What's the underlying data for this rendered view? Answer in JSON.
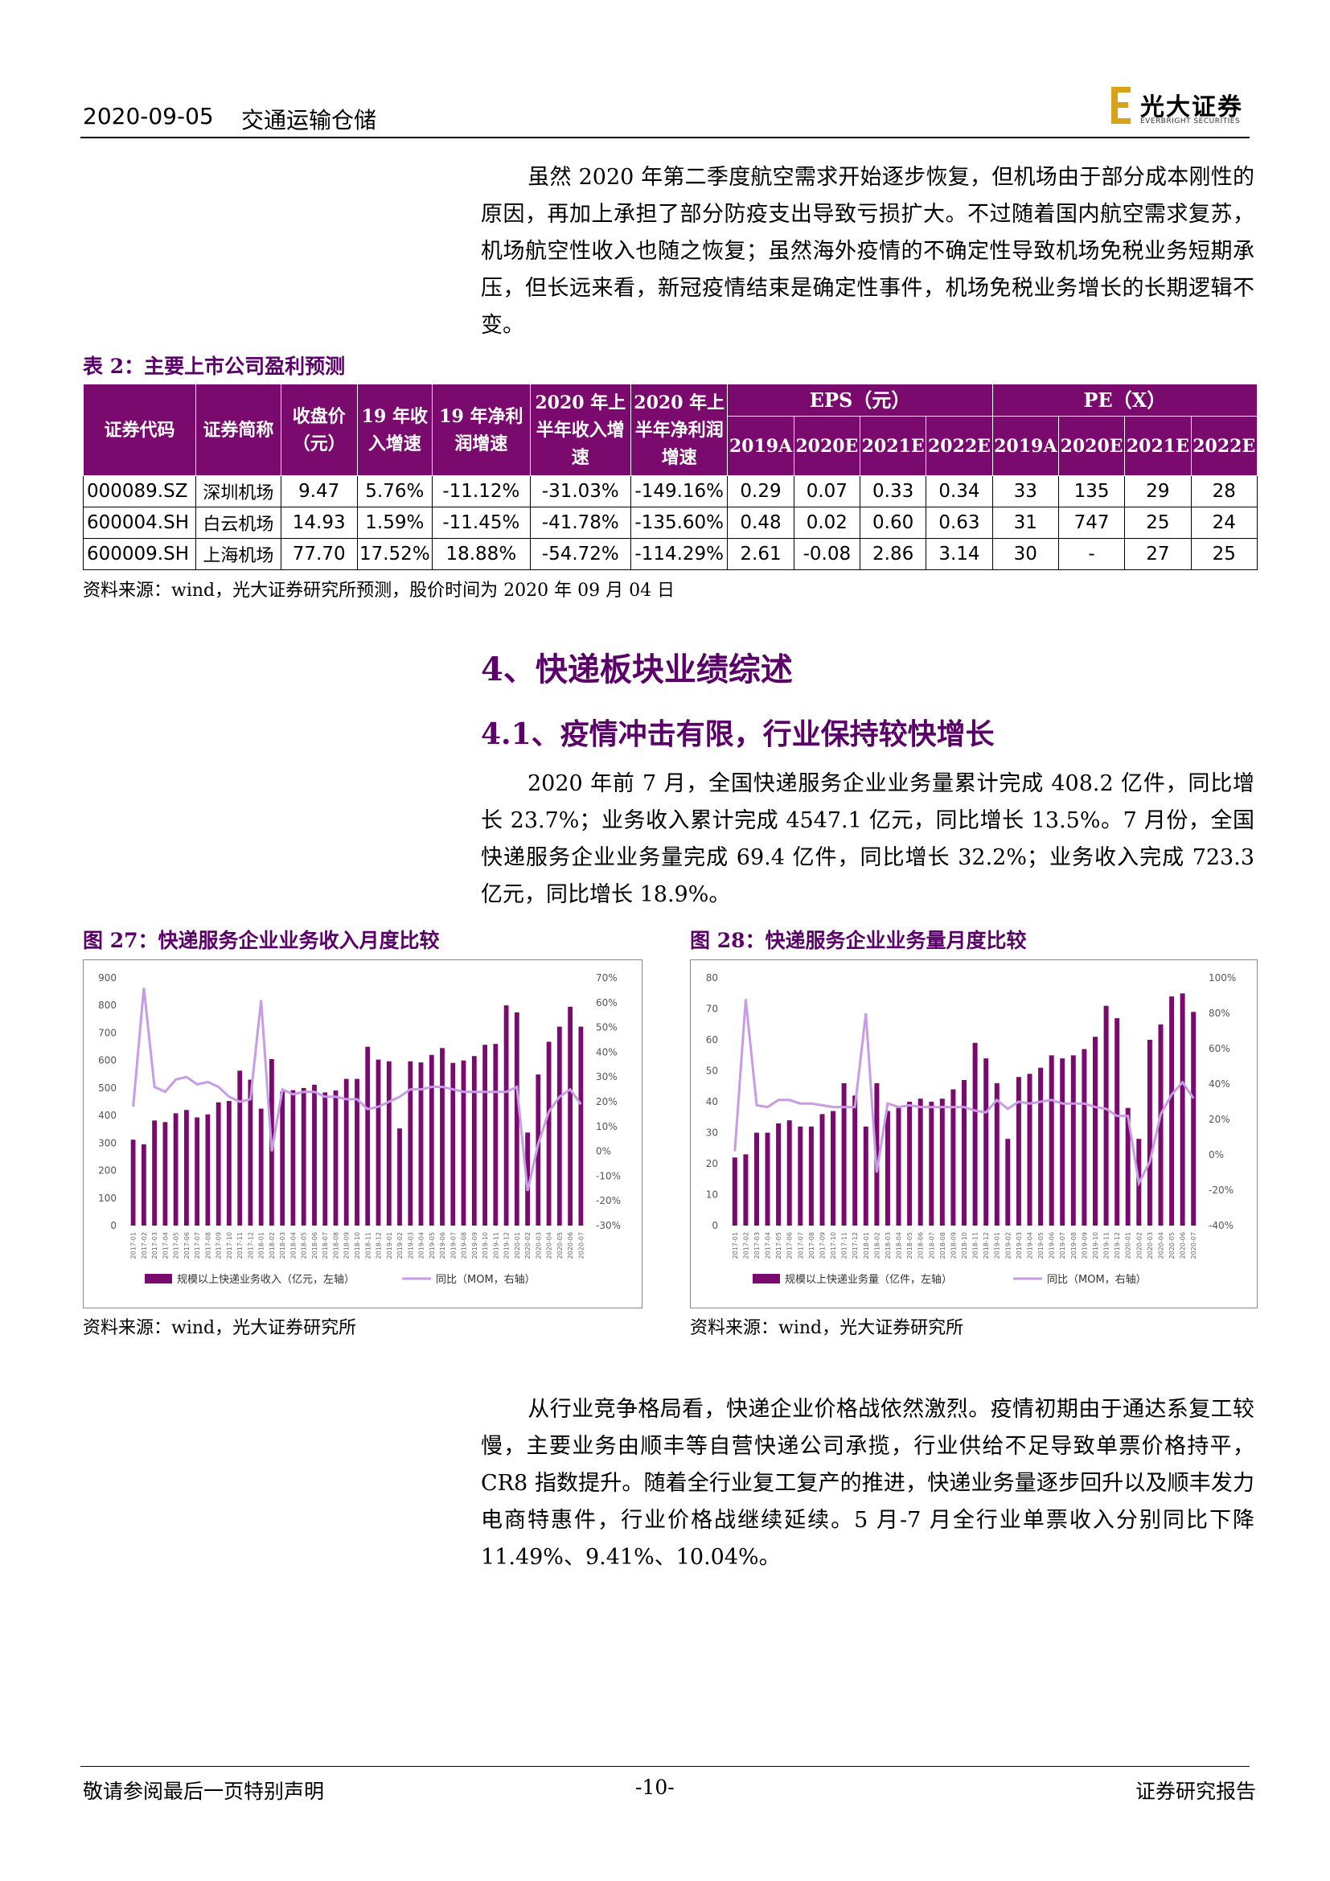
{
  "header": {
    "date": "2020-09-05",
    "sector": "交通运输仓储",
    "logo_cn": "光大证券",
    "logo_en": "EVERBRIGHT SECURITIES",
    "accent": "#7b0a6e"
  },
  "para1": "虽然 2020 年第二季度航空需求开始逐步恢复，但机场由于部分成本刚性的原因，再加上承担了部分防疫支出导致亏损扩大。不过随着国内航空需求复苏，机场航空性收入也随之恢复；虽然海外疫情的不确定性导致机场免税业务短期承压，但长远来看，新冠疫情结束是确定性事件，机场免税业务增长的长期逻辑不变。",
  "table": {
    "caption": "表 2：主要上市公司盈利预测",
    "headers": {
      "code": "证券代码",
      "name": "证券简称",
      "price": "收盘价（元）",
      "rev19": "19 年收入增速",
      "np19": "19 年净利润增速",
      "rev20h1": "2020 年上半年收入增速",
      "np20h1": "2020 年上半年净利润增速",
      "eps": "EPS（元）",
      "pe": "PE（X）",
      "years": [
        "2019A",
        "2020E",
        "2021E",
        "2022E"
      ]
    },
    "rows": [
      {
        "code": "000089.SZ",
        "name": "深圳机场",
        "price": "9.47",
        "rev19": "5.76%",
        "np19": "-11.12%",
        "rev20h1": "-31.03%",
        "np20h1": "-149.16%",
        "eps": [
          "0.29",
          "0.07",
          "0.33",
          "0.34"
        ],
        "pe": [
          "33",
          "135",
          "29",
          "28"
        ]
      },
      {
        "code": "600004.SH",
        "name": "白云机场",
        "price": "14.93",
        "rev19": "1.59%",
        "np19": "-11.45%",
        "rev20h1": "-41.78%",
        "np20h1": "-135.60%",
        "eps": [
          "0.48",
          "0.02",
          "0.60",
          "0.63"
        ],
        "pe": [
          "31",
          "747",
          "25",
          "24"
        ]
      },
      {
        "code": "600009.SH",
        "name": "上海机场",
        "price": "77.70",
        "rev19": "17.52%",
        "np19": "18.88%",
        "rev20h1": "-54.72%",
        "np20h1": "-114.29%",
        "eps": [
          "2.61",
          "-0.08",
          "2.86",
          "3.14"
        ],
        "pe": [
          "30",
          "-",
          "27",
          "25"
        ]
      }
    ],
    "source": "资料来源：wind，光大证券研究所预测，股价时间为 2020 年 09 月 04 日"
  },
  "section4": "4、快递板块业绩综述",
  "section41": "4.1、疫情冲击有限，行业保持较快增长",
  "para2": "2020 年前 7 月，全国快递服务企业业务量累计完成 408.2 亿件，同比增长 23.7%；业务收入累计完成 4547.1 亿元，同比增长 13.5%。7 月份，全国快递服务企业业务量完成 69.4 亿件，同比增长 32.2%；业务收入完成 723.3 亿元，同比增长 18.9%。",
  "fig27": {
    "caption": "图 27：快递服务企业业务收入月度比较",
    "source": "资料来源：wind，光大证券研究所"
  },
  "fig28": {
    "caption": "图 28：快递服务企业业务量月度比较",
    "source": "资料来源：wind，光大证券研究所"
  },
  "chart_data": [
    {
      "type": "bar",
      "categories": [
        "2017-01",
        "2017-02",
        "2017-03",
        "2017-04",
        "2017-05",
        "2017-06",
        "2017-07",
        "2017-08",
        "2017-09",
        "2017-10",
        "2017-11",
        "2017-12",
        "2018-01",
        "2018-02",
        "2018-03",
        "2018-04",
        "2018-05",
        "2018-06",
        "2018-07",
        "2018-08",
        "2018-09",
        "2018-10",
        "2018-11",
        "2018-12",
        "2019-01",
        "2019-02",
        "2019-03",
        "2019-04",
        "2019-05",
        "2019-06",
        "2019-07",
        "2019-08",
        "2019-09",
        "2019-10",
        "2019-11",
        "2019-12",
        "2020-01",
        "2020-02",
        "2020-03",
        "2020-04",
        "2020-05",
        "2020-06",
        "2020-07"
      ],
      "series": [
        {
          "name": "规模以上快递业务收入（亿元，左轴）",
          "axis": "left",
          "kind": "bar",
          "color": "#7b0a6e",
          "values": [
            312,
            295,
            382,
            376,
            408,
            420,
            393,
            404,
            448,
            453,
            563,
            530,
            425,
            605,
            487,
            492,
            500,
            512,
            484,
            491,
            533,
            533,
            650,
            603,
            597,
            353,
            597,
            593,
            620,
            645,
            591,
            600,
            616,
            657,
            660,
            800,
            775,
            338,
            549,
            668,
            723,
            795,
            723
          ]
        },
        {
          "name": "同比（MOM，右轴）",
          "axis": "right",
          "kind": "line",
          "color": "#c89be6",
          "values": [
            18,
            66,
            26,
            24,
            29,
            30,
            27,
            28,
            26,
            22,
            20,
            21,
            61,
            0,
            25,
            23,
            24,
            24,
            22,
            22,
            21,
            21,
            17,
            18,
            20,
            22,
            25,
            25,
            26,
            26,
            25,
            24,
            24,
            24,
            24,
            24,
            26,
            -16,
            3,
            16,
            22,
            25,
            19
          ]
        }
      ],
      "ylim_left": [
        0,
        900
      ],
      "ylim_right": [
        -30,
        70
      ],
      "yticks_left": [
        "0",
        "100",
        "200",
        "300",
        "400",
        "500",
        "600",
        "700",
        "800",
        "900"
      ],
      "yticks_right": [
        "-30%",
        "-20%",
        "-10%",
        "0%",
        "10%",
        "20%",
        "30%",
        "40%",
        "50%",
        "60%",
        "70%"
      ],
      "legend": "bottom"
    },
    {
      "type": "bar",
      "categories": [
        "2017-01",
        "2017-02",
        "2017-03",
        "2017-04",
        "2017-05",
        "2017-06",
        "2017-07",
        "2017-08",
        "2017-09",
        "2017-10",
        "2017-11",
        "2017-12",
        "2018-01",
        "2018-02",
        "2018-03",
        "2018-04",
        "2018-05",
        "2018-06",
        "2018-07",
        "2018-08",
        "2018-09",
        "2018-10",
        "2018-11",
        "2018-12",
        "2019-01",
        "2019-02",
        "2019-03",
        "2019-04",
        "2019-05",
        "2019-06",
        "2019-07",
        "2019-08",
        "2019-09",
        "2019-10",
        "2019-11",
        "2019-12",
        "2020-01",
        "2020-02",
        "2020-03",
        "2020-04",
        "2020-05",
        "2020-06",
        "2020-07"
      ],
      "series": [
        {
          "name": "规模以上快递业务量（亿件，左轴）",
          "axis": "left",
          "kind": "bar",
          "color": "#7b0a6e",
          "values": [
            22,
            23,
            30,
            30,
            33,
            34,
            32,
            32,
            36,
            37,
            46,
            42,
            32,
            46,
            37,
            38,
            40,
            41,
            40,
            41,
            44,
            47,
            59,
            54,
            46,
            28,
            48,
            49,
            51,
            55,
            54,
            55,
            57,
            61,
            71,
            67,
            38,
            28,
            60,
            65,
            74,
            75,
            69
          ]
        },
        {
          "name": "同比（MOM，右轴）",
          "axis": "right",
          "kind": "line",
          "color": "#c89be6",
          "values": [
            2,
            88,
            28,
            27,
            31,
            31,
            29,
            29,
            28,
            27,
            27,
            27,
            80,
            -10,
            29,
            27,
            28,
            27,
            27,
            27,
            27,
            27,
            25,
            24,
            31,
            26,
            30,
            29,
            30,
            31,
            29,
            29,
            29,
            27,
            26,
            22,
            22,
            -16,
            -4,
            23,
            34,
            41,
            32
          ]
        }
      ],
      "ylim_left": [
        0,
        80
      ],
      "ylim_right": [
        -40,
        100
      ],
      "yticks_left": [
        "0",
        "10",
        "20",
        "30",
        "40",
        "50",
        "60",
        "70",
        "80"
      ],
      "yticks_right": [
        "-40%",
        "-20%",
        "0%",
        "20%",
        "40%",
        "60%",
        "80%",
        "100%"
      ],
      "legend": "bottom"
    }
  ],
  "para3": "从行业竞争格局看，快递企业价格战依然激烈。疫情初期由于通达系复工较慢，主要业务由顺丰等自营快递公司承揽，行业供给不足导致单票价格持平，CR8 指数提升。随着全行业复工复产的推进，快递业务量逐步回升以及顺丰发力电商特惠件，行业价格战继续延续。5 月-7 月全行业单票收入分别同比下降 11.49%、9.41%、10.04%。",
  "footer": {
    "left": "敬请参阅最后一页特别声明",
    "page": "-10-",
    "right": "证券研究报告"
  }
}
